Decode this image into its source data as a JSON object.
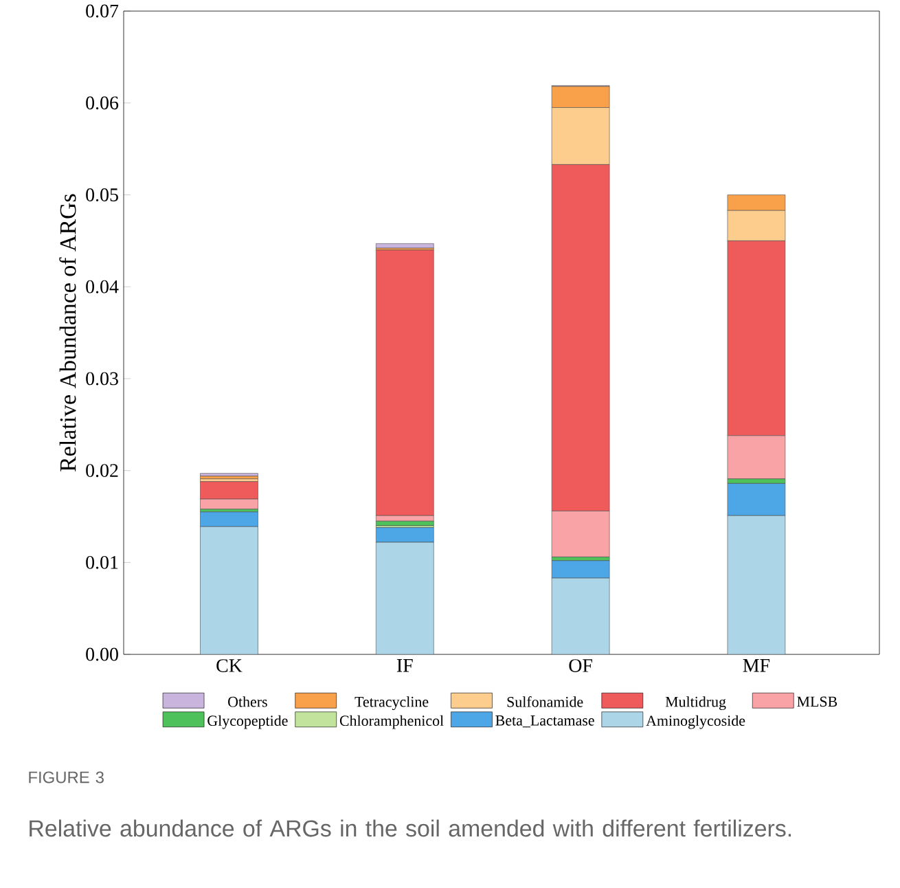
{
  "chart_data": {
    "type": "bar",
    "stacked": true,
    "ylabel": "Relative Abundance of ARGs",
    "categories": [
      "CK",
      "IF",
      "OF",
      "MF"
    ],
    "series": [
      {
        "name": "Aminoglycoside",
        "color": "#acd5e7",
        "values": [
          0.0139,
          0.0122,
          0.0083,
          0.0151
        ]
      },
      {
        "name": "Beta_Lactamase",
        "color": "#4da6e6",
        "values": [
          0.0016,
          0.0016,
          0.0019,
          0.0035
        ]
      },
      {
        "name": "Chloramphenicol",
        "color": "#c2e39c",
        "values": [
          null,
          0.0002,
          null,
          null
        ]
      },
      {
        "name": "Glycopeptide",
        "color": "#4fc15a",
        "values": [
          0.0003,
          0.0005,
          0.0004,
          0.0005
        ]
      },
      {
        "name": "MLSB",
        "color": "#f9a3a7",
        "values": [
          0.0011,
          0.0006,
          0.005,
          0.0047
        ]
      },
      {
        "name": "Multidrug",
        "color": "#ef5b5b",
        "values": [
          0.0019,
          0.0289,
          0.0377,
          0.0212
        ]
      },
      {
        "name": "Sulfonamide",
        "color": "#fdcd8e",
        "values": [
          0.0003,
          null,
          0.0062,
          0.0033
        ]
      },
      {
        "name": "Tetracycline",
        "color": "#f9a04b",
        "values": [
          0.0003,
          0.0002,
          0.0023,
          0.0017
        ]
      },
      {
        "name": "Others",
        "color": "#c8b4dc",
        "values": [
          0.0003,
          0.0005,
          0.0001,
          null
        ]
      }
    ],
    "ylim": [
      0,
      0.07
    ],
    "yticks": [
      {
        "value": 0,
        "label": "0.00"
      },
      {
        "value": 0.01,
        "label": "0.01"
      },
      {
        "value": 0.02,
        "label": "0.02"
      },
      {
        "value": 0.03,
        "label": "0.03"
      },
      {
        "value": 0.04,
        "label": "0.04"
      },
      {
        "value": 0.05,
        "label": "0.05"
      },
      {
        "value": 0.06,
        "label": "0.06"
      },
      {
        "value": 0.07,
        "label": "0.07"
      }
    ],
    "legend": "bottom",
    "annotations": [
      "FIGURE 3",
      "Relative abundance of ARGs in the soil amended with different fertilizers."
    ]
  }
}
